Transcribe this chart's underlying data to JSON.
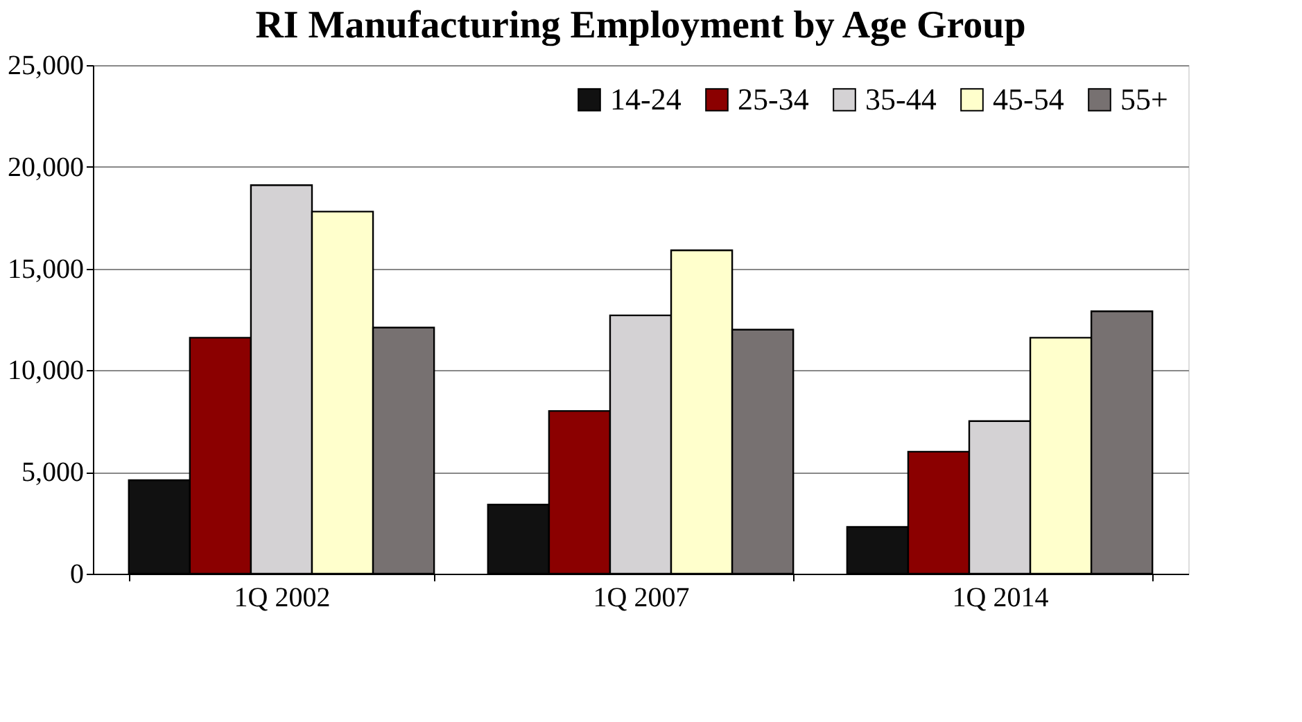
{
  "chart_data": {
    "type": "bar",
    "title": "RI Manufacturing Employment by Age Group",
    "categories": [
      "1Q 2002",
      "1Q 2007",
      "1Q 2014"
    ],
    "series": [
      {
        "name": "14-24",
        "color": "#111111",
        "values": [
          4600,
          3400,
          2300
        ]
      },
      {
        "name": "25-34",
        "color": "#8b0000",
        "values": [
          11600,
          8000,
          6000
        ]
      },
      {
        "name": "35-44",
        "color": "#d4d2d4",
        "values": [
          19100,
          12700,
          7500
        ]
      },
      {
        "name": "45-54",
        "color": "#ffffcc",
        "values": [
          17800,
          15900,
          11600
        ]
      },
      {
        "name": "55+",
        "color": "#777171",
        "values": [
          12100,
          12000,
          12900
        ]
      }
    ],
    "ylim": [
      0,
      25000
    ],
    "yticks": [
      {
        "value": 0,
        "label": "0"
      },
      {
        "value": 5000,
        "label": "5,000"
      },
      {
        "value": 10000,
        "label": "10,000"
      },
      {
        "value": 15000,
        "label": "15,000"
      },
      {
        "value": 20000,
        "label": "20,000"
      },
      {
        "value": 25000,
        "label": "25,000"
      }
    ],
    "grid": "y",
    "legend": "top right"
  }
}
